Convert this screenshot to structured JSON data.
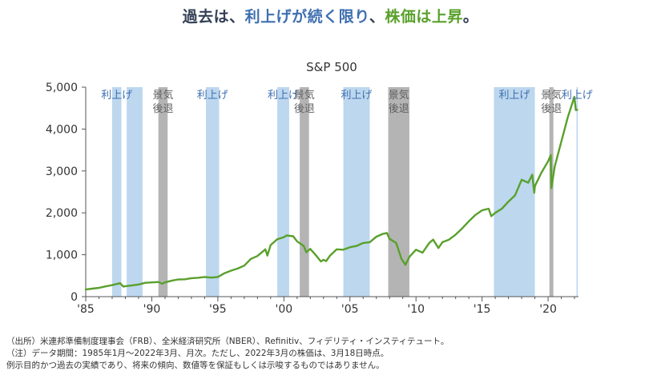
{
  "headline": {
    "part1": "過去は、",
    "part2": "利上げが続く限り",
    "part3": "、",
    "part4": "株価は上昇",
    "part5": "。"
  },
  "colors": {
    "headline_dark": "#333f55",
    "headline_blue": "#3f6fb0",
    "headline_green": "#59a12b",
    "hike_band": "#bcd7ee",
    "recession_band": "#b4b4b4",
    "line": "#5aa02c",
    "axis": "#555555"
  },
  "chart_data": {
    "type": "line",
    "title": "S&P 500",
    "xlabel": "",
    "ylabel": "",
    "xlim": [
      1985,
      2022.3
    ],
    "ylim": [
      0,
      5000
    ],
    "x_ticks": [
      1985,
      1990,
      1995,
      2000,
      2005,
      2010,
      2015,
      2020
    ],
    "x_tick_labels": [
      "'85",
      "'90",
      "'95",
      "'00",
      "'05",
      "'10",
      "'15",
      "'20"
    ],
    "y_ticks": [
      0,
      1000,
      2000,
      3000,
      4000,
      5000
    ],
    "y_tick_labels": [
      "0",
      "1,000",
      "2,000",
      "3,000",
      "4,000",
      "5,000"
    ],
    "grid": false,
    "legend": "none",
    "bands": [
      {
        "kind": "hike",
        "start": 1987.0,
        "end": 1987.7,
        "label": "利上げ"
      },
      {
        "kind": "hike",
        "start": 1988.1,
        "end": 1989.3,
        "label": ""
      },
      {
        "kind": "recession",
        "start": 1990.5,
        "end": 1991.2,
        "label": "景気後退"
      },
      {
        "kind": "hike",
        "start": 1994.1,
        "end": 1995.1,
        "label": "利上げ"
      },
      {
        "kind": "hike",
        "start": 1999.5,
        "end": 2000.4,
        "label": "利上げ"
      },
      {
        "kind": "recession",
        "start": 2001.2,
        "end": 2001.9,
        "label": "景気後退"
      },
      {
        "kind": "hike",
        "start": 2004.5,
        "end": 2006.5,
        "label": "利上げ"
      },
      {
        "kind": "recession",
        "start": 2007.9,
        "end": 2009.5,
        "label": "景気後退"
      },
      {
        "kind": "hike",
        "start": 2015.9,
        "end": 2019.0,
        "label": "利上げ"
      },
      {
        "kind": "recession",
        "start": 2020.1,
        "end": 2020.4,
        "label": "景気後退"
      },
      {
        "kind": "hike",
        "start": 2022.15,
        "end": 2022.25,
        "label": "利上げ"
      }
    ],
    "series": [
      {
        "name": "S&P 500",
        "x": [
          1985.0,
          1985.5,
          1986.0,
          1986.5,
          1987.0,
          1987.6,
          1987.85,
          1988.0,
          1988.5,
          1989.0,
          1989.5,
          1990.0,
          1990.5,
          1990.8,
          1991.0,
          1991.5,
          1992.0,
          1992.5,
          1993.0,
          1993.5,
          1994.0,
          1994.5,
          1995.0,
          1995.5,
          1996.0,
          1996.5,
          1997.0,
          1997.5,
          1998.0,
          1998.6,
          1998.75,
          1999.0,
          1999.5,
          2000.0,
          2000.2,
          2000.7,
          2001.0,
          2001.5,
          2001.7,
          2002.0,
          2002.5,
          2002.8,
          2003.0,
          2003.2,
          2003.5,
          2004.0,
          2004.5,
          2005.0,
          2005.5,
          2006.0,
          2006.5,
          2007.0,
          2007.5,
          2007.8,
          2008.0,
          2008.5,
          2008.9,
          2009.2,
          2009.5,
          2010.0,
          2010.5,
          2011.0,
          2011.3,
          2011.7,
          2012.0,
          2012.5,
          2013.0,
          2013.5,
          2014.0,
          2014.5,
          2015.0,
          2015.5,
          2015.7,
          2016.0,
          2016.5,
          2017.0,
          2017.5,
          2018.0,
          2018.5,
          2018.8,
          2018.95,
          2019.0,
          2019.5,
          2020.0,
          2020.2,
          2020.25,
          2020.5,
          2021.0,
          2021.5,
          2021.99,
          2022.1,
          2022.2
        ],
        "values": [
          170,
          190,
          210,
          245,
          275,
          320,
          240,
          250,
          270,
          290,
          330,
          340,
          350,
          310,
          340,
          380,
          410,
          415,
          440,
          450,
          470,
          455,
          470,
          560,
          620,
          670,
          740,
          900,
          970,
          1130,
          980,
          1230,
          1370,
          1420,
          1460,
          1440,
          1320,
          1210,
          1060,
          1140,
          960,
          840,
          880,
          850,
          980,
          1130,
          1120,
          1180,
          1210,
          1280,
          1300,
          1430,
          1500,
          1520,
          1380,
          1280,
          900,
          760,
          950,
          1120,
          1050,
          1280,
          1360,
          1160,
          1300,
          1360,
          1480,
          1630,
          1800,
          1950,
          2060,
          2100,
          1920,
          2000,
          2100,
          2270,
          2420,
          2790,
          2720,
          2910,
          2480,
          2640,
          2960,
          3230,
          3380,
          2590,
          3100,
          3700,
          4290,
          4770,
          4450,
          4460
        ]
      }
    ]
  },
  "notes": {
    "line1": "（出所）米連邦準備制度理事会（FRB）、全米経済研究所（NBER）、Refinitiv、フィデリティ・インスティテュート。",
    "line2": "（注）データ期間：1985年1月～2022年3月、月次。ただし、2022年3月の株価は、3月18日時点。",
    "line3": "例示目的かつ過去の実績であり、将来の傾向、数値等を保証もしくは示唆するものではありません。"
  }
}
